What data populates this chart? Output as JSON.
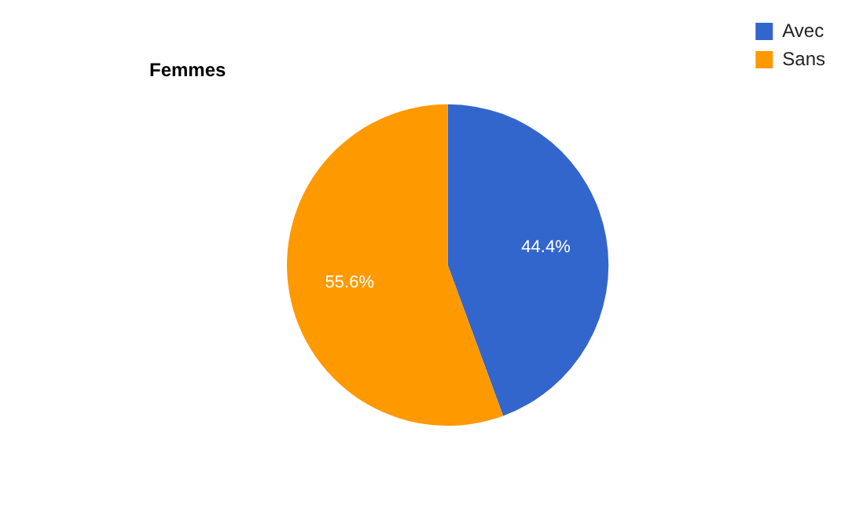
{
  "chart_data": {
    "type": "pie",
    "title": "Femmes",
    "categories": [
      "Avec",
      "Sans"
    ],
    "values": [
      44.4,
      55.6
    ],
    "colors": [
      "#3366cc",
      "#ff9900"
    ],
    "value_labels": [
      "44.4%",
      "55.6%"
    ],
    "legend": "top right"
  }
}
